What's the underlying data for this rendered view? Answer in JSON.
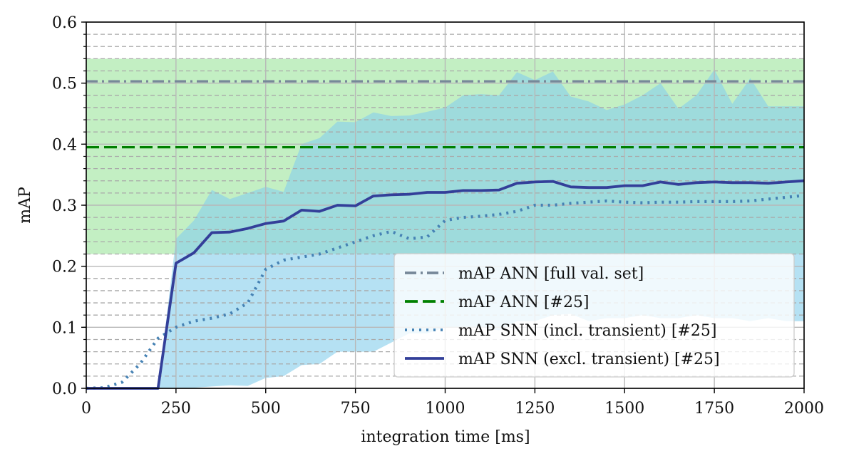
{
  "chart_data": {
    "type": "line",
    "title": "",
    "xlabel": "integration time [ms]",
    "ylabel": "mAP",
    "xlim": [
      0,
      2000
    ],
    "ylim": [
      0,
      0.6
    ],
    "xticks": [
      0,
      250,
      500,
      750,
      1000,
      1250,
      1500,
      1750,
      2000
    ],
    "xtick_labels": [
      "0",
      "250",
      "500",
      "750",
      "1000",
      "1250",
      "1500",
      "1750",
      "2000"
    ],
    "yticks": [
      0.0,
      0.1,
      0.2,
      0.3,
      0.4,
      0.5,
      0.6
    ],
    "ytick_labels": [
      "0.0",
      "0.1",
      "0.2",
      "0.3",
      "0.4",
      "0.5",
      "0.6"
    ],
    "y_minor_step": 0.02,
    "grid": {
      "major": true,
      "y_minor": true
    },
    "legend": {
      "placement": "lower-right"
    },
    "bands": [
      {
        "y0": 0.22,
        "y1": 0.54,
        "color": "#c3efc3"
      }
    ],
    "reference_lines": [
      {
        "name": "mAP ANN [full val. set]",
        "y": 0.503,
        "color": "#778899",
        "style": "dashdot"
      },
      {
        "name": "mAP ANN [#25]",
        "y": 0.395,
        "color": "#008000",
        "style": "dashed"
      }
    ],
    "shaded_ranges": [
      {
        "color": "#87ceeb",
        "x": [
          0,
          200,
          250,
          300,
          350,
          400,
          450,
          500,
          550,
          600,
          650,
          700,
          750,
          800,
          850,
          900,
          950,
          1000,
          1050,
          1100,
          1150,
          1200,
          1250,
          1300,
          1350,
          1400,
          1450,
          1500,
          1550,
          1600,
          1650,
          1700,
          1750,
          1800,
          1850,
          1900,
          1950,
          2000
        ],
        "upper": [
          0,
          0,
          0.245,
          0.275,
          0.325,
          0.31,
          0.32,
          0.33,
          0.322,
          0.4,
          0.41,
          0.437,
          0.436,
          0.452,
          0.446,
          0.447,
          0.453,
          0.46,
          0.48,
          0.482,
          0.48,
          0.518,
          0.505,
          0.519,
          0.478,
          0.47,
          0.456,
          0.465,
          0.48,
          0.5,
          0.458,
          0.48,
          0.522,
          0.466,
          0.508,
          0.462,
          0.462,
          0.462
        ],
        "lower": [
          0,
          0,
          0,
          0.001,
          0.003,
          0.005,
          0.004,
          0.017,
          0.02,
          0.038,
          0.04,
          0.06,
          0.06,
          0.06,
          0.075,
          0.09,
          0.09,
          0.1,
          0.1,
          0.1,
          0.095,
          0.11,
          0.11,
          0.12,
          0.122,
          0.11,
          0.115,
          0.115,
          0.12,
          0.115,
          0.115,
          0.12,
          0.115,
          0.115,
          0.11,
          0.115,
          0.11,
          0.11
        ]
      }
    ],
    "series": [
      {
        "name": "mAP SNN (incl. transient) [#25]",
        "color": "#4682b4",
        "style": "dotted",
        "x": [
          0,
          50,
          100,
          150,
          200,
          250,
          300,
          350,
          400,
          450,
          500,
          550,
          600,
          650,
          700,
          750,
          800,
          850,
          900,
          950,
          1000,
          1050,
          1100,
          1150,
          1200,
          1250,
          1300,
          1350,
          1400,
          1450,
          1500,
          1550,
          1600,
          1650,
          1700,
          1750,
          1800,
          1850,
          1900,
          1950,
          2000
        ],
        "y": [
          0,
          0.001,
          0.01,
          0.04,
          0.082,
          0.1,
          0.11,
          0.115,
          0.122,
          0.14,
          0.195,
          0.21,
          0.215,
          0.22,
          0.23,
          0.24,
          0.25,
          0.257,
          0.245,
          0.248,
          0.275,
          0.28,
          0.282,
          0.285,
          0.29,
          0.3,
          0.3,
          0.303,
          0.305,
          0.307,
          0.305,
          0.304,
          0.305,
          0.305,
          0.306,
          0.306,
          0.306,
          0.307,
          0.31,
          0.313,
          0.316
        ]
      },
      {
        "name": "mAP SNN (excl. transient) [#25]",
        "color": "#333f99",
        "style": "solid",
        "x": [
          0,
          200,
          250,
          300,
          350,
          400,
          450,
          500,
          550,
          600,
          650,
          700,
          750,
          800,
          850,
          900,
          950,
          1000,
          1050,
          1100,
          1150,
          1200,
          1250,
          1300,
          1350,
          1400,
          1450,
          1500,
          1550,
          1600,
          1650,
          1700,
          1750,
          1800,
          1850,
          1900,
          1950,
          2000
        ],
        "y": [
          0,
          0,
          0.205,
          0.222,
          0.255,
          0.256,
          0.262,
          0.27,
          0.274,
          0.292,
          0.29,
          0.3,
          0.299,
          0.315,
          0.317,
          0.318,
          0.321,
          0.321,
          0.324,
          0.324,
          0.325,
          0.336,
          0.338,
          0.339,
          0.33,
          0.329,
          0.329,
          0.332,
          0.332,
          0.338,
          0.334,
          0.337,
          0.338,
          0.337,
          0.337,
          0.336,
          0.338,
          0.34
        ]
      }
    ]
  }
}
